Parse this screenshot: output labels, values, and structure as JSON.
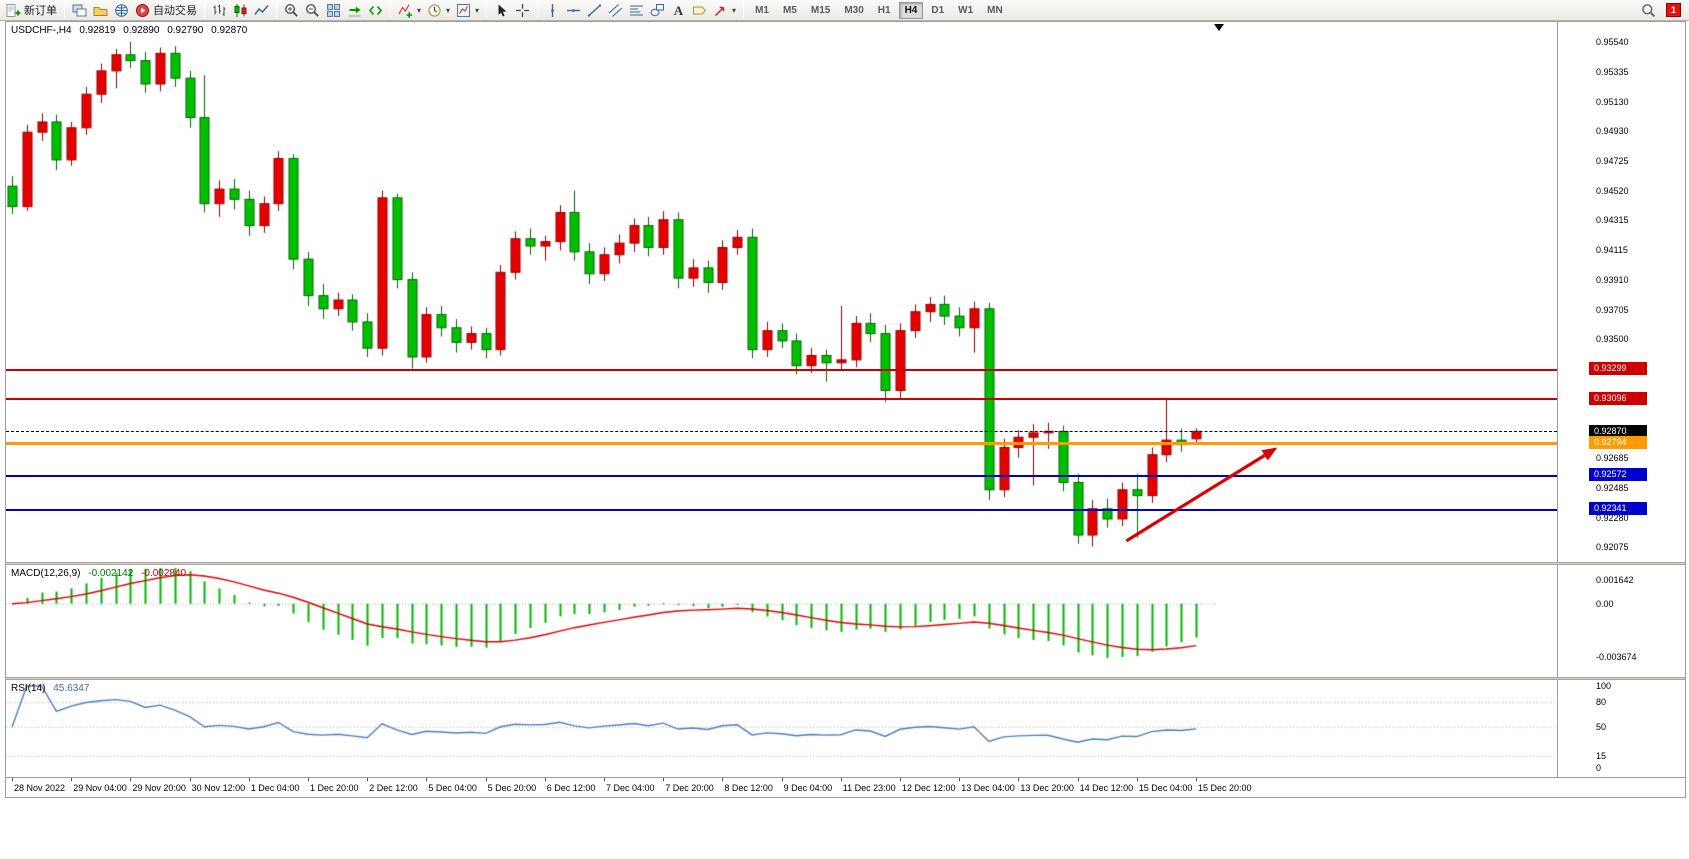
{
  "window": {
    "notification_count": "1"
  },
  "toolbar": {
    "buttons": [
      {
        "name": "new-order",
        "icon": "new-order",
        "label": "新订单"
      },
      {
        "sep": true
      },
      {
        "name": "charts-window",
        "icon": "window"
      },
      {
        "name": "profiles",
        "icon": "profiles"
      },
      {
        "name": "market-watch",
        "icon": "globe"
      },
      {
        "name": "autotrading",
        "icon": "autotrade",
        "label": "自动交易"
      },
      {
        "sep": true
      },
      {
        "name": "bar-chart-mode",
        "icon": "bars"
      },
      {
        "name": "candle-chart-mode",
        "icon": "candles"
      },
      {
        "name": "line-chart-mode",
        "icon": "line"
      },
      {
        "sep": true
      },
      {
        "name": "zoom-in",
        "icon": "zoom-in"
      },
      {
        "name": "zoom-out",
        "icon": "zoom-out"
      },
      {
        "name": "tile-windows",
        "icon": "tile"
      },
      {
        "name": "auto-scroll",
        "icon": "autoscroll"
      },
      {
        "name": "chart-shift",
        "icon": "shift"
      },
      {
        "sep": true
      },
      {
        "name": "indicators",
        "icon": "indicator",
        "dropdown": true
      },
      {
        "name": "periods",
        "icon": "clock",
        "dropdown": true
      },
      {
        "name": "templates",
        "icon": "template",
        "dropdown": true
      },
      {
        "sep": true
      },
      {
        "name": "cursor",
        "icon": "cursor"
      },
      {
        "name": "crosshair",
        "icon": "crosshair"
      },
      {
        "sep": true
      },
      {
        "name": "vertical-line",
        "icon": "vline"
      },
      {
        "name": "horizontal-line",
        "icon": "hline"
      },
      {
        "name": "trendline",
        "icon": "trend"
      },
      {
        "name": "equidistant-channel",
        "icon": "channel"
      },
      {
        "name": "fibonacci-retracement",
        "icon": "fibo"
      },
      {
        "name": "shapes",
        "icon": "shapes"
      },
      {
        "name": "text",
        "icon": "text"
      },
      {
        "name": "text-label",
        "icon": "label"
      },
      {
        "name": "arrows-tool",
        "icon": "arrowtool",
        "dropdown": true
      },
      {
        "sep": true
      }
    ],
    "timeframes": [
      "M1",
      "M5",
      "M15",
      "M30",
      "H1",
      "H4",
      "D1",
      "W1",
      "MN"
    ],
    "active_timeframe": "H4"
  },
  "chart": {
    "symbol_period": "USDCHF-,H4",
    "open": "0.92819",
    "high": "0.92890",
    "low": "0.92790",
    "close": "0.92870",
    "price_axis_labels": [
      "0.95540",
      "0.95335",
      "0.95130",
      "0.94930",
      "0.94725",
      "0.94520",
      "0.94315",
      "0.94115",
      "0.93910",
      "0.93705",
      "0.93500",
      "0.92685",
      "0.92485",
      "0.92280",
      "0.92075"
    ],
    "levels": [
      {
        "name": "resistance-line-1",
        "value": 0.93299,
        "label": "0.93299",
        "color": "#cc0000",
        "style": "solid",
        "thickness": 2
      },
      {
        "name": "resistance-line-2",
        "value": 0.93096,
        "label": "0.93096",
        "color": "#cc0000",
        "style": "solid",
        "thickness": 2
      },
      {
        "name": "current-price-line",
        "value": 0.9287,
        "label": "0.92870",
        "color": "#000000",
        "style": "dashed",
        "thickness": 1
      },
      {
        "name": "orange-level-line",
        "value": 0.92794,
        "label": "0.92794",
        "color": "#ff9b00",
        "style": "solid",
        "thickness": 3
      },
      {
        "name": "support-line-1",
        "value": 0.92572,
        "label": "0.92572",
        "color": "#0000cc",
        "style": "solid",
        "thickness": 2
      },
      {
        "name": "support-line-2",
        "value": 0.92341,
        "label": "0.92341",
        "color": "#0000cc",
        "style": "solid",
        "thickness": 2
      }
    ],
    "time_labels": [
      "28 Nov 2022",
      "29 Nov 04:00",
      "29 Nov 20:00",
      "30 Nov 12:00",
      "1 Dec 04:00",
      "1 Dec 20:00",
      "2 Dec 12:00",
      "5 Dec 04:00",
      "5 Dec 20:00",
      "6 Dec 12:00",
      "7 Dec 04:00",
      "7 Dec 20:00",
      "8 Dec 12:00",
      "9 Dec 04:00",
      "11 Dec 23:00",
      "12 Dec 12:00",
      "13 Dec 04:00",
      "13 Dec 20:00",
      "14 Dec 12:00",
      "15 Dec 04:00",
      "15 Dec 20:00"
    ]
  },
  "macd": {
    "label": "MACD(12,26,9)",
    "value_main": "-0.002142",
    "value_signal": "-0.002840",
    "axis_labels": [
      "0.001642",
      "0.00",
      "-0.003674"
    ],
    "histogram_color": "#00b400",
    "signal_color": "#dd0000"
  },
  "rsi": {
    "label": "RSI(14)",
    "value": "45.6347",
    "axis_labels": [
      "100",
      "80",
      "50",
      "15",
      "0"
    ],
    "line_color": "#4a7ebb"
  },
  "chart_data": {
    "type": "candlestick",
    "symbol": "USDCHF",
    "timeframe": "H4",
    "up_color": "#e60000",
    "down_color": "#00c000",
    "indicators": [
      {
        "name": "MACD",
        "params": [
          12,
          26,
          9
        ]
      },
      {
        "name": "RSI",
        "params": [
          14
        ]
      }
    ],
    "candles": [
      [
        0.9455,
        0.9462,
        0.9436,
        0.9441
      ],
      [
        0.9441,
        0.9497,
        0.9438,
        0.9492
      ],
      [
        0.9492,
        0.9505,
        0.9486,
        0.9499
      ],
      [
        0.9499,
        0.9504,
        0.9466,
        0.9473
      ],
      [
        0.9473,
        0.9499,
        0.9469,
        0.9495
      ],
      [
        0.9495,
        0.9523,
        0.949,
        0.9518
      ],
      [
        0.9518,
        0.9539,
        0.9512,
        0.9534
      ],
      [
        0.9534,
        0.9549,
        0.9522,
        0.9545
      ],
      [
        0.9545,
        0.9554,
        0.9536,
        0.9541
      ],
      [
        0.9541,
        0.9547,
        0.9519,
        0.9525
      ],
      [
        0.9525,
        0.955,
        0.952,
        0.9546
      ],
      [
        0.9546,
        0.9551,
        0.9523,
        0.9529
      ],
      [
        0.9529,
        0.9534,
        0.9495,
        0.9502
      ],
      [
        0.9502,
        0.9531,
        0.9437,
        0.9443
      ],
      [
        0.9443,
        0.9459,
        0.9434,
        0.9453
      ],
      [
        0.9453,
        0.946,
        0.9439,
        0.9446
      ],
      [
        0.9446,
        0.9452,
        0.9421,
        0.9428
      ],
      [
        0.9428,
        0.9448,
        0.9423,
        0.9443
      ],
      [
        0.9443,
        0.9479,
        0.9438,
        0.9474
      ],
      [
        0.9474,
        0.9477,
        0.9398,
        0.9405
      ],
      [
        0.9405,
        0.941,
        0.9373,
        0.938
      ],
      [
        0.938,
        0.9388,
        0.9364,
        0.9371
      ],
      [
        0.9371,
        0.9382,
        0.9366,
        0.9377
      ],
      [
        0.9377,
        0.9381,
        0.9356,
        0.9362
      ],
      [
        0.9362,
        0.9368,
        0.9338,
        0.9344
      ],
      [
        0.9344,
        0.9452,
        0.9339,
        0.9447
      ],
      [
        0.9447,
        0.945,
        0.9385,
        0.9391
      ],
      [
        0.9391,
        0.9396,
        0.933,
        0.9338
      ],
      [
        0.9338,
        0.9372,
        0.9334,
        0.9367
      ],
      [
        0.9367,
        0.9373,
        0.9352,
        0.9358
      ],
      [
        0.9358,
        0.9364,
        0.9341,
        0.9348
      ],
      [
        0.9348,
        0.9359,
        0.9343,
        0.9354
      ],
      [
        0.9354,
        0.9358,
        0.9337,
        0.9343
      ],
      [
        0.9343,
        0.9401,
        0.9339,
        0.9396
      ],
      [
        0.9396,
        0.9424,
        0.9391,
        0.9419
      ],
      [
        0.9419,
        0.9426,
        0.9408,
        0.9414
      ],
      [
        0.9414,
        0.9421,
        0.9404,
        0.9417
      ],
      [
        0.9417,
        0.9442,
        0.9411,
        0.9437
      ],
      [
        0.9437,
        0.9452,
        0.9404,
        0.941
      ],
      [
        0.941,
        0.9416,
        0.9388,
        0.9395
      ],
      [
        0.9395,
        0.9413,
        0.939,
        0.9408
      ],
      [
        0.9408,
        0.9422,
        0.9402,
        0.9416
      ],
      [
        0.9416,
        0.9433,
        0.941,
        0.9428
      ],
      [
        0.9428,
        0.9434,
        0.9407,
        0.9413
      ],
      [
        0.9413,
        0.9438,
        0.9408,
        0.9432
      ],
      [
        0.9432,
        0.9437,
        0.9385,
        0.9392
      ],
      [
        0.9392,
        0.9405,
        0.9386,
        0.9399
      ],
      [
        0.9399,
        0.9404,
        0.9382,
        0.9389
      ],
      [
        0.9389,
        0.9418,
        0.9384,
        0.9413
      ],
      [
        0.9413,
        0.9425,
        0.9408,
        0.942
      ],
      [
        0.942,
        0.9426,
        0.9337,
        0.9343
      ],
      [
        0.9343,
        0.9362,
        0.9338,
        0.9356
      ],
      [
        0.9356,
        0.9361,
        0.9344,
        0.9349
      ],
      [
        0.9349,
        0.9354,
        0.9326,
        0.9332
      ],
      [
        0.9332,
        0.9344,
        0.9327,
        0.9339
      ],
      [
        0.9339,
        0.9343,
        0.9321,
        0.9334
      ],
      [
        0.9334,
        0.9373,
        0.9329,
        0.9336
      ],
      [
        0.9336,
        0.9366,
        0.9331,
        0.9361
      ],
      [
        0.9361,
        0.9368,
        0.9348,
        0.9354
      ],
      [
        0.9354,
        0.936,
        0.9307,
        0.9315
      ],
      [
        0.9315,
        0.9361,
        0.9309,
        0.9356
      ],
      [
        0.9356,
        0.9374,
        0.9351,
        0.9369
      ],
      [
        0.9369,
        0.9379,
        0.9362,
        0.9374
      ],
      [
        0.9374,
        0.938,
        0.936,
        0.9366
      ],
      [
        0.9366,
        0.9372,
        0.9352,
        0.9358
      ],
      [
        0.9358,
        0.9376,
        0.9341,
        0.9371
      ],
      [
        0.9371,
        0.9375,
        0.924,
        0.9247
      ],
      [
        0.9247,
        0.9282,
        0.9242,
        0.9276
      ],
      [
        0.9276,
        0.9288,
        0.9269,
        0.9283
      ],
      [
        0.9283,
        0.9292,
        0.925,
        0.9286
      ],
      [
        0.9286,
        0.9293,
        0.9275,
        0.9287
      ],
      [
        0.9287,
        0.9291,
        0.9246,
        0.9252
      ],
      [
        0.9252,
        0.9258,
        0.921,
        0.9216
      ],
      [
        0.9216,
        0.924,
        0.9208,
        0.9234
      ],
      [
        0.9234,
        0.9241,
        0.9221,
        0.9227
      ],
      [
        0.9227,
        0.9252,
        0.9222,
        0.9247
      ],
      [
        0.9247,
        0.9258,
        0.9214,
        0.9243
      ],
      [
        0.9243,
        0.9276,
        0.9238,
        0.9271
      ],
      [
        0.9271,
        0.931,
        0.9266,
        0.9281
      ],
      [
        0.9281,
        0.9289,
        0.9273,
        0.9278
      ],
      [
        0.92819,
        0.9289,
        0.9279,
        0.9287
      ]
    ]
  },
  "annotations": {
    "trend_arrow": {
      "color": "#dd0000",
      "from_bar": 75.3,
      "from_price": 0.9212,
      "to_bar": 85.5,
      "to_price": 0.9276
    }
  }
}
